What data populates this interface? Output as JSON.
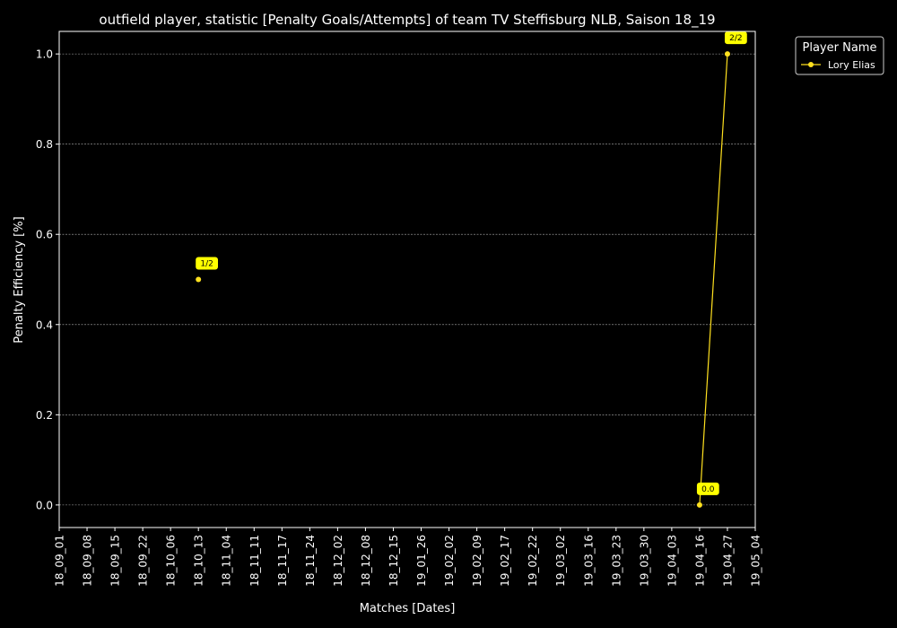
{
  "chart_data": {
    "type": "line",
    "title": "outfield player, statistic [Penalty Goals/Attempts] of team TV Steffisburg NLB, Saison 18_19",
    "xlabel": "Matches [Dates]",
    "ylabel": "Penalty Efficiency [%]",
    "x_ticks": [
      "18_09_01",
      "18_09_08",
      "18_09_15",
      "18_09_22",
      "18_10_06",
      "18_10_13",
      "18_11_04",
      "18_11_11",
      "18_11_17",
      "18_11_24",
      "18_12_02",
      "18_12_08",
      "18_12_15",
      "19_01_26",
      "19_02_02",
      "19_02_09",
      "19_02_17",
      "19_02_22",
      "19_03_02",
      "19_03_16",
      "19_03_23",
      "19_03_30",
      "19_04_03",
      "19_04_16",
      "19_04_27",
      "19_05_04"
    ],
    "y_ticks": [
      "0.0",
      "0.2",
      "0.4",
      "0.6",
      "0.8",
      "1.0"
    ],
    "ylim": [
      -0.05,
      1.05
    ],
    "grid": true,
    "legend": {
      "title": "Player Name",
      "placement": "top-right-outside"
    },
    "series": [
      {
        "name": "Lory Elias",
        "color": "#ffe11f",
        "points": [
          {
            "x": "18_10_13",
            "y": 0.5,
            "label": "1/2"
          },
          {
            "x": "19_04_16",
            "y": 0.0,
            "label": "0.0"
          },
          {
            "x": "19_04_27",
            "y": 1.0,
            "label": "2/2"
          }
        ],
        "line_segments": [
          [
            "19_04_16",
            "19_04_27"
          ]
        ]
      }
    ]
  }
}
